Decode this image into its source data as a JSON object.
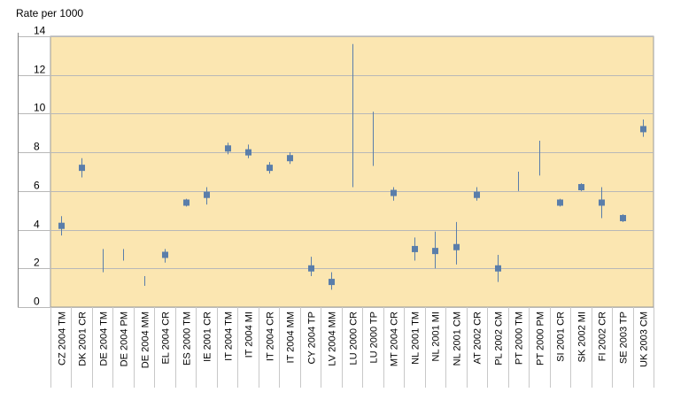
{
  "chart_data": {
    "type": "scatter",
    "ylabel": "Rate per 1000",
    "ylim": [
      0,
      14
    ],
    "yticks": [
      0,
      2,
      4,
      6,
      8,
      10,
      12,
      14
    ],
    "grid": true,
    "colors": {
      "plot_bg": "#fbe6b1",
      "marker": "#5a7eaa",
      "gridline": "#b8b8b8",
      "axis": "#808080"
    },
    "categories": [
      "CZ 2004 TM",
      "DK 2001 CR",
      "DE 2004 TM",
      "DE 2004 PM",
      "DE 2004 MM",
      "EL 2004 CR",
      "ES 2000 TM",
      "IE 2001 CR",
      "IT 2004 TM",
      "IT 2004 MI",
      "IT 2004 CR",
      "IT 2004 MM",
      "CY 2004 TP",
      "LV 2004 MM",
      "LU 2000 CR",
      "LU 2000 TP",
      "MT 2004 CR",
      "NL 2001 TM",
      "NL 2001 MI",
      "NL 2001 CM",
      "AT 2002 CR",
      "PL 2002 CM",
      "PT 2000 TM",
      "PT 2000 PM",
      "SI 2001 CR",
      "SK 2002 MI",
      "FI 2002 CR",
      "SE 2003 TP",
      "UK 2003 CM"
    ],
    "points": [
      {
        "value": 4.2,
        "low": 3.7,
        "high": 4.7
      },
      {
        "value": 7.2,
        "low": 6.7,
        "high": 7.7
      },
      {
        "value": null,
        "low": 1.8,
        "high": 3.0
      },
      {
        "value": null,
        "low": 2.4,
        "high": 3.0
      },
      {
        "value": null,
        "low": 1.1,
        "high": 1.6
      },
      {
        "value": 2.7,
        "low": 2.3,
        "high": 3.0
      },
      {
        "value": 5.4,
        "low": 5.2,
        "high": 5.6
      },
      {
        "value": 5.8,
        "low": 5.3,
        "high": 6.2
      },
      {
        "value": 8.2,
        "low": 7.9,
        "high": 8.5
      },
      {
        "value": 8.0,
        "low": 7.7,
        "high": 8.4
      },
      {
        "value": 7.2,
        "low": 6.9,
        "high": 7.5
      },
      {
        "value": 7.7,
        "low": 7.4,
        "high": 8.0
      },
      {
        "value": 2.0,
        "low": 1.6,
        "high": 2.6
      },
      {
        "value": 1.3,
        "low": 0.9,
        "high": 1.8
      },
      {
        "value": null,
        "low": 6.2,
        "high": 13.6
      },
      {
        "value": null,
        "low": 7.3,
        "high": 10.1
      },
      {
        "value": 5.9,
        "low": 5.5,
        "high": 6.2
      },
      {
        "value": 3.0,
        "low": 2.4,
        "high": 3.6
      },
      {
        "value": 2.9,
        "low": 2.0,
        "high": 3.9
      },
      {
        "value": 3.1,
        "low": 2.2,
        "high": 4.4
      },
      {
        "value": 5.8,
        "low": 5.5,
        "high": 6.2
      },
      {
        "value": 2.0,
        "low": 1.3,
        "high": 2.7
      },
      {
        "value": null,
        "low": 6.0,
        "high": 7.0
      },
      {
        "value": null,
        "low": 6.8,
        "high": 8.6
      },
      {
        "value": 5.4,
        "low": 5.2,
        "high": 5.6
      },
      {
        "value": 6.2,
        "low": 6.0,
        "high": 6.4
      },
      {
        "value": 5.4,
        "low": 4.6,
        "high": 6.2
      },
      {
        "value": 4.6,
        "low": 4.4,
        "high": 4.8
      },
      {
        "value": 9.2,
        "low": 8.8,
        "high": 9.7
      }
    ]
  }
}
